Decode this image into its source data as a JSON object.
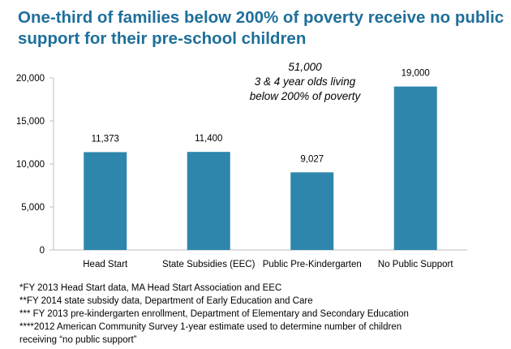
{
  "title": {
    "line1": "One-third of families below 200% of poverty receive no public",
    "line2": "support for their pre-school children"
  },
  "colors": {
    "title": "#1f6f9a",
    "bar": "#2e86ad",
    "axis": "#bfbfbf",
    "text": "#000000"
  },
  "chart_data": {
    "type": "bar",
    "categories": [
      "Head Start",
      "State Subsidies (EEC)",
      "Public Pre-Kindergarten",
      "No Public Support"
    ],
    "values": [
      11373,
      11400,
      9027,
      19000
    ],
    "data_labels": [
      "11,373",
      "11,400",
      "9,027",
      "19,000"
    ],
    "ylim": [
      0,
      20000
    ],
    "yticks": [
      0,
      5000,
      10000,
      15000,
      20000
    ],
    "ytick_labels": [
      "0",
      "5,000",
      "10,000",
      "15,000",
      "20,000"
    ],
    "grid": false,
    "annotation": {
      "lines": [
        "51,000",
        "3 & 4 year olds living",
        "below 200% of poverty"
      ]
    },
    "xlabel": "",
    "ylabel": ""
  },
  "footnotes": [
    "*FY 2013 Head Start data, MA Head Start Association and EEC",
    "**FY 2014 state subsidy data, Department of Early Education and Care",
    "*** FY 2013 pre-kindergarten enrollment, Department of Elementary and Secondary Education",
    "****2012 American Community Survey 1-year estimate used to determine number of children",
    "receiving “no public support”"
  ]
}
